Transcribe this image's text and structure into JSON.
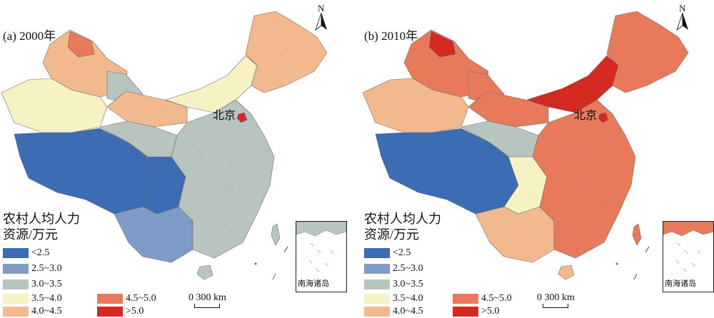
{
  "colors": {
    "lt2_5": "#3c6cb4",
    "c2_5_3_0": "#7f9cc8",
    "c3_0_3_5": "#b8c4c0",
    "c3_5_4_0": "#f6f2c4",
    "c4_0_4_5": "#f2b98e",
    "c4_5_5_0": "#e8795a",
    "gt5_0": "#d42a22"
  },
  "panels": [
    {
      "title": "(a) 2000年",
      "capital": "北京",
      "north": "N",
      "scale": "0 300 km",
      "inset": "南海诸岛"
    },
    {
      "title": "(b) 2010年",
      "capital": "北京",
      "north": "N",
      "scale": "0 300 km",
      "inset": "南海诸岛"
    }
  ],
  "legend": {
    "title_line1": "农村人均人力",
    "title_line2": "资源/万元",
    "items": [
      {
        "label": "<2.5",
        "color_key": "lt2_5"
      },
      {
        "label": "2.5~3.0",
        "color_key": "c2_5_3_0"
      },
      {
        "label": "3.0~3.5",
        "color_key": "c3_0_3_5"
      },
      {
        "label": "3.5~4.0",
        "color_key": "c3_5_4_0"
      },
      {
        "label": "4.0~4.5",
        "color_key": "c4_0_4_5"
      },
      {
        "label": "4.5~5.0",
        "color_key": "c4_5_5_0"
      },
      {
        "label": ">5.0",
        "color_key": "gt5_0"
      }
    ]
  },
  "region_classes": {
    "panel_a": {
      "xinjiang_north": "c4_0_4_5",
      "xinjiang_north_hot": "c4_5_5_0",
      "xinjiang_south": "c3_5_4_0",
      "xinjiang_mid": "c3_0_3_5",
      "tibet": "lt2_5",
      "qinghai": "c3_0_3_5",
      "qinghai_east": "lt2_5",
      "inner_mongolia": "c3_5_4_0",
      "inner_mongolia_west": "c4_0_4_5",
      "northeast": "c4_0_4_5",
      "southwest": "c2_5_3_0",
      "southeast": "c3_0_3_5",
      "beijing": "gt5_0",
      "hainan": "c3_0_3_5"
    },
    "panel_b": {
      "xinjiang_north": "c4_5_5_0",
      "xinjiang_north_hot": "gt5_0",
      "xinjiang_south": "c4_0_4_5",
      "xinjiang_mid": "c4_5_5_0",
      "tibet": "lt2_5",
      "qinghai": "c3_0_3_5",
      "qinghai_east": "c3_5_4_0",
      "inner_mongolia": "gt5_0",
      "inner_mongolia_west": "c4_5_5_0",
      "northeast": "c4_5_5_0",
      "southwest": "c4_0_4_5",
      "southeast": "c4_5_5_0",
      "beijing": "gt5_0",
      "hainan": "c4_0_4_5"
    }
  }
}
